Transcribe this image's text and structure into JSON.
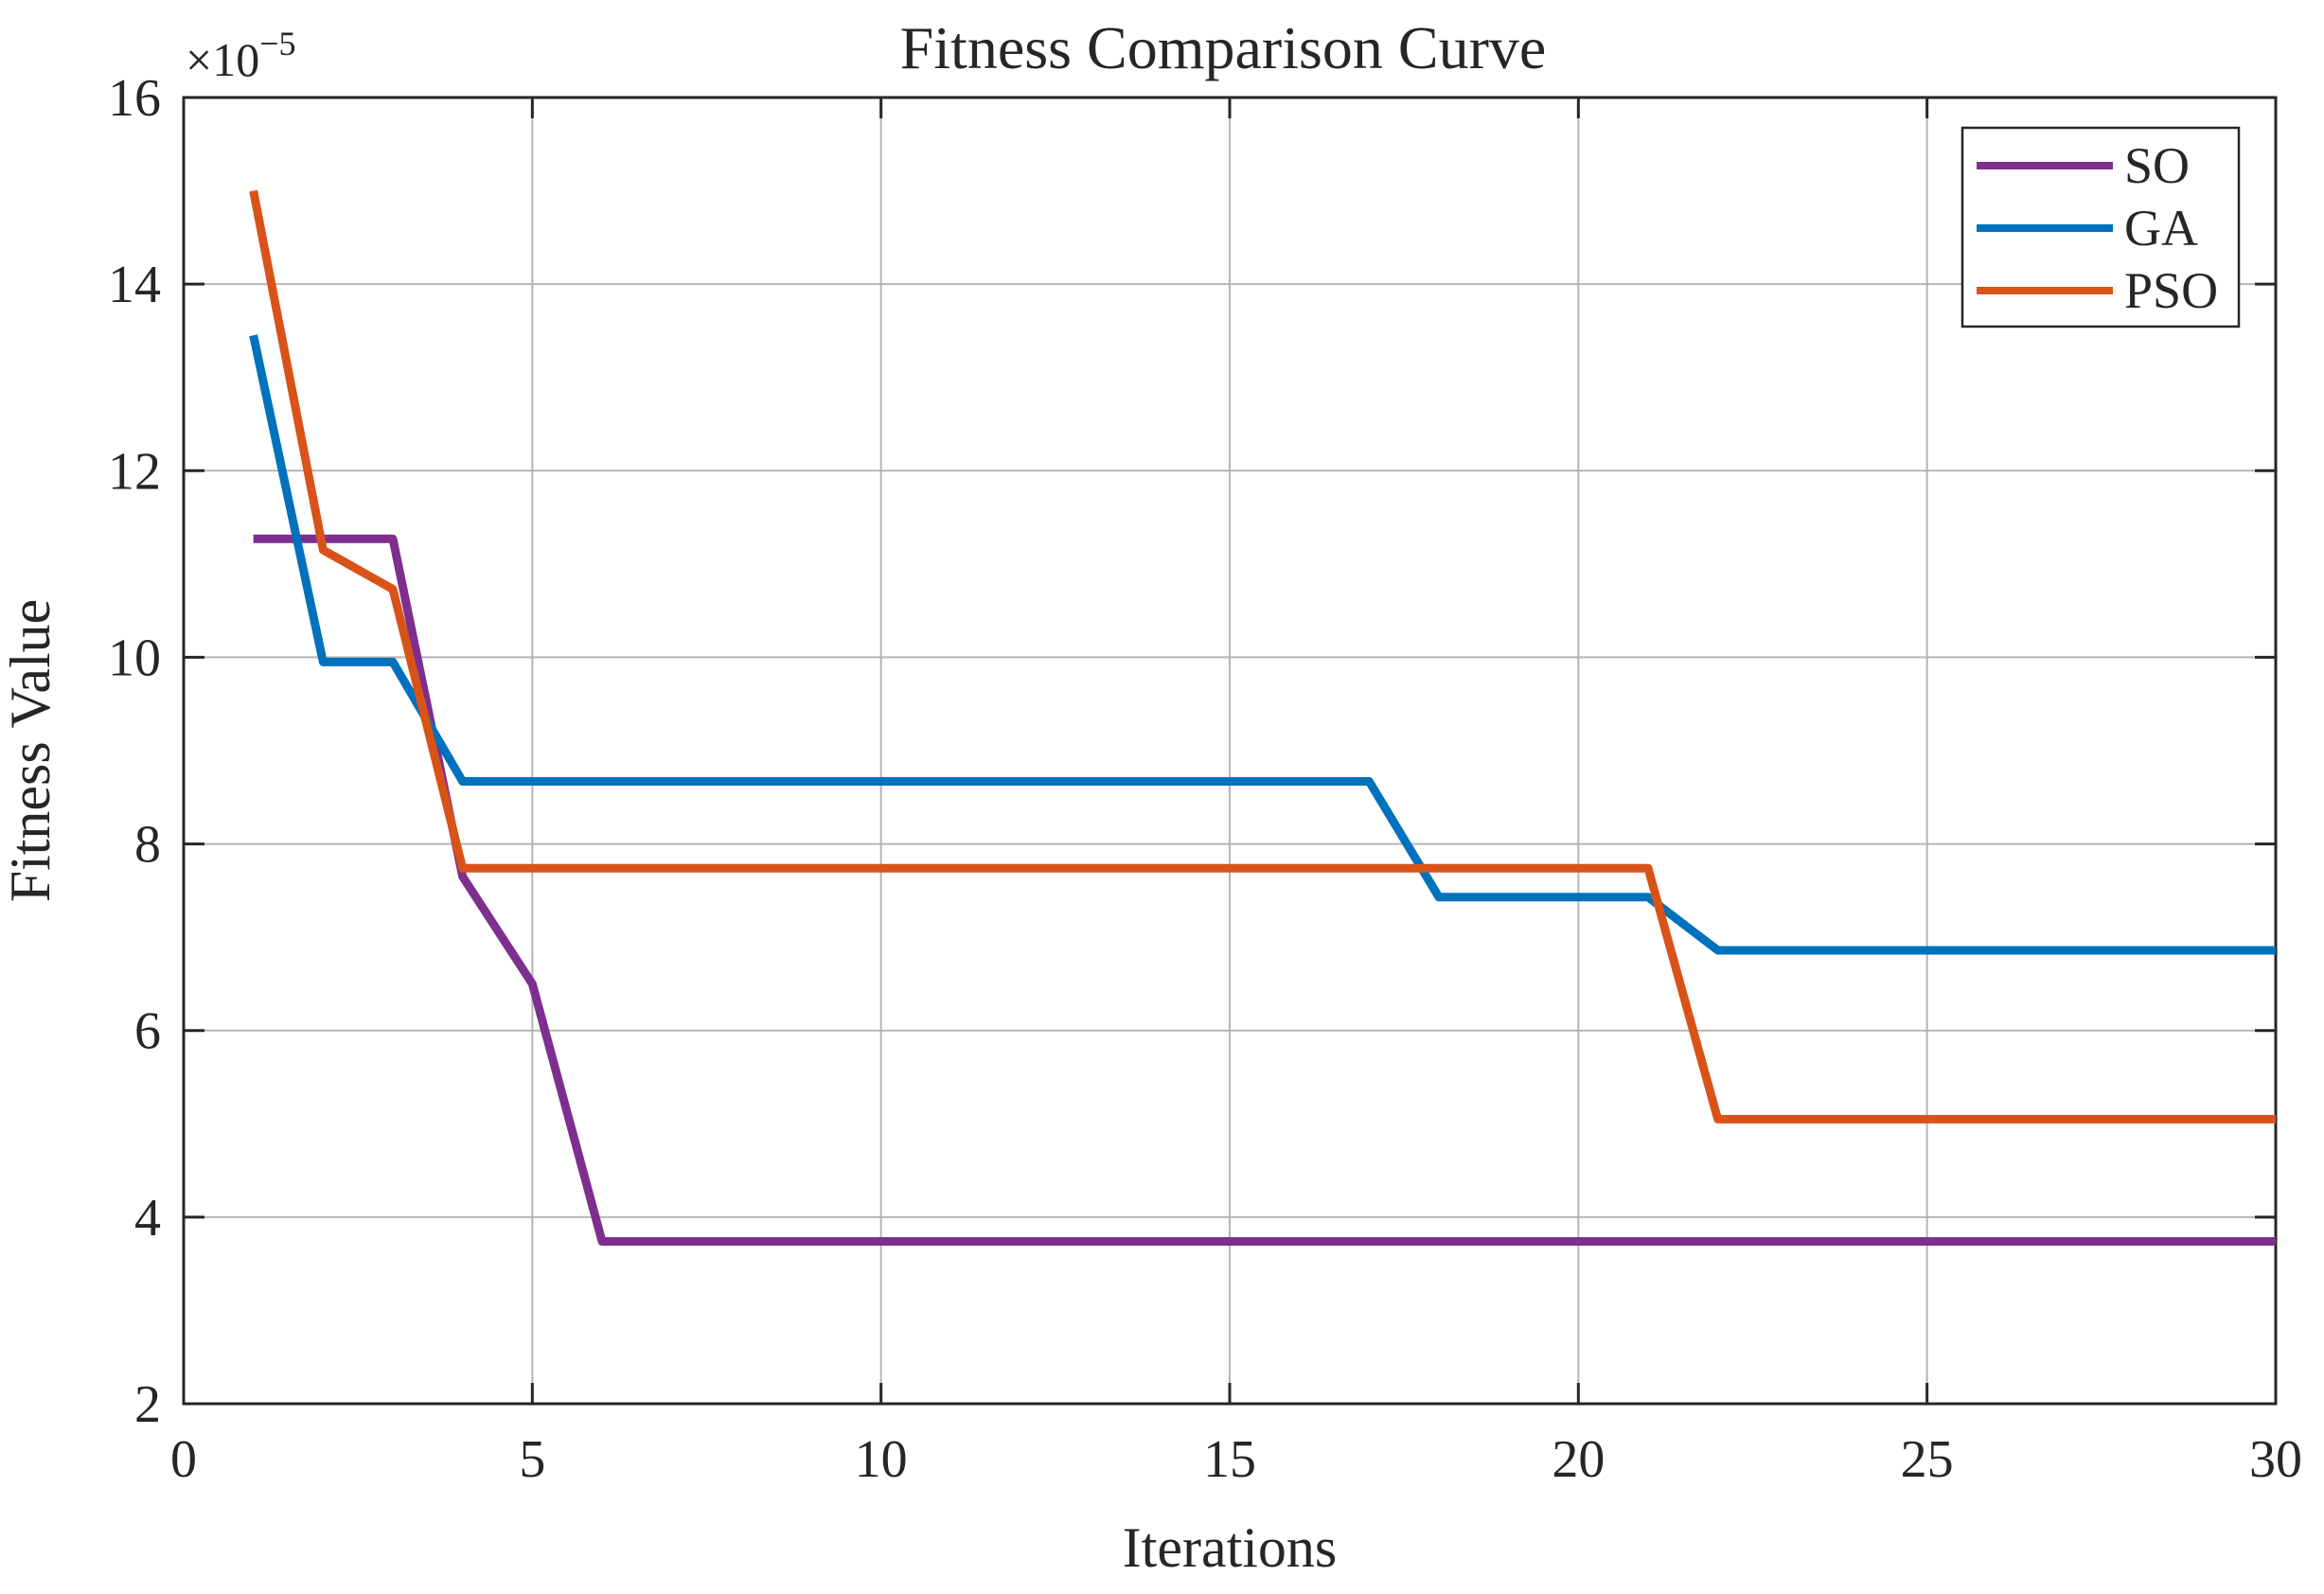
{
  "chart": {
    "colors": {
      "axis": "#262626",
      "grid": "#b5b5b5",
      "background": "#ffffff"
    }
  },
  "chart_data": {
    "type": "line",
    "title": "Fitness Comparison Curve",
    "xlabel": "Iterations",
    "ylabel": "Fitness Value",
    "offset_label": {
      "base": "×10",
      "exponent": "−5"
    },
    "y_scale_exponent": -5,
    "xlim": [
      0,
      30
    ],
    "ylim": [
      2,
      16
    ],
    "xticks": [
      0,
      5,
      10,
      15,
      20,
      25,
      30
    ],
    "yticks": [
      2,
      4,
      6,
      8,
      10,
      12,
      14,
      16
    ],
    "grid": true,
    "legend_position": "top-right",
    "x": [
      1,
      2,
      3,
      4,
      5,
      6,
      7,
      8,
      9,
      10,
      11,
      12,
      13,
      14,
      15,
      16,
      17,
      18,
      19,
      20,
      21,
      22,
      23,
      24,
      25,
      26,
      27,
      28,
      29,
      30
    ],
    "series": [
      {
        "name": "SO",
        "color": "#7E2F8E",
        "values": [
          11.27,
          11.27,
          11.27,
          7.65,
          6.5,
          3.74,
          3.74,
          3.74,
          3.74,
          3.74,
          3.74,
          3.74,
          3.74,
          3.74,
          3.74,
          3.74,
          3.74,
          3.74,
          3.74,
          3.74,
          3.74,
          3.74,
          3.74,
          3.74,
          3.74,
          3.74,
          3.74,
          3.74,
          3.74,
          3.74
        ]
      },
      {
        "name": "GA",
        "color": "#0072BD",
        "values": [
          13.45,
          9.95,
          9.95,
          8.67,
          8.67,
          8.67,
          8.67,
          8.67,
          8.67,
          8.67,
          8.67,
          8.67,
          8.67,
          8.67,
          8.67,
          8.67,
          8.67,
          7.43,
          7.43,
          7.43,
          7.43,
          6.86,
          6.86,
          6.86,
          6.86,
          6.86,
          6.86,
          6.86,
          6.86,
          6.86
        ]
      },
      {
        "name": "PSO",
        "color": "#D95319",
        "values": [
          15.0,
          11.15,
          10.73,
          7.74,
          7.74,
          7.74,
          7.74,
          7.74,
          7.74,
          7.74,
          7.74,
          7.74,
          7.74,
          7.74,
          7.74,
          7.74,
          7.74,
          7.74,
          7.74,
          7.74,
          7.74,
          5.05,
          5.05,
          5.05,
          5.05,
          5.05,
          5.05,
          5.05,
          5.05,
          5.05
        ]
      }
    ]
  }
}
